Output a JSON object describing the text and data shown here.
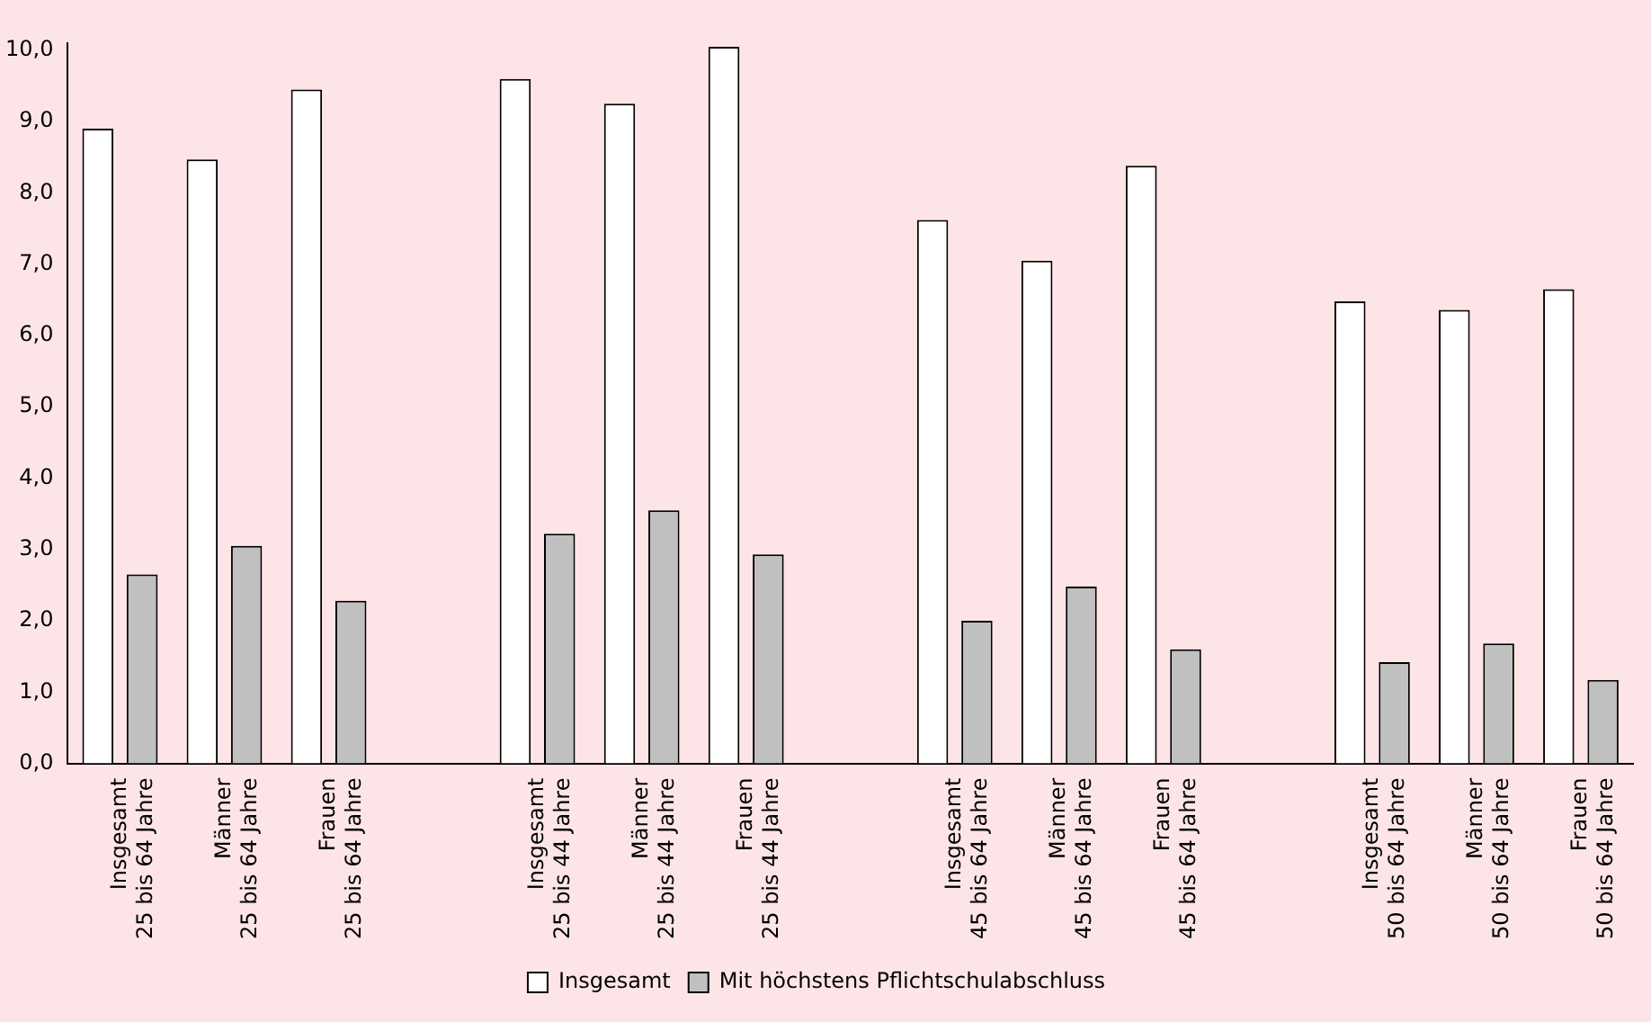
{
  "chart_data": {
    "type": "bar",
    "categories": [
      "Insgesamt\n25 bis 64 Jahre",
      "Männer\n25 bis 64 Jahre",
      "Frauen\n25 bis 64 Jahre",
      null,
      "Insgesamt\n25 bis 44 Jahre",
      "Männer\n25 bis 44 Jahre",
      "Frauen\n25 bis 44 Jahre",
      null,
      "Insgesamt\n45 bis 64 Jahre",
      "Männer\n45 bis 64 Jahre",
      "Frauen\n45 bis 64 Jahre",
      null,
      "Insgesamt\n50 bis 64 Jahre",
      "Männer\n50 bis 64 Jahre",
      "Frauen\n50 bis 64 Jahre"
    ],
    "series": [
      {
        "name": "Insgesamt",
        "color": "#ffffff",
        "values": [
          8.9,
          8.47,
          9.45,
          null,
          9.6,
          9.25,
          10.05,
          null,
          7.62,
          7.05,
          8.38,
          null,
          6.48,
          6.36,
          6.65
        ]
      },
      {
        "name": "Mit höchstens Pflichtschulabschluss",
        "color": "#c0c0c0",
        "values": [
          2.65,
          3.05,
          2.28,
          null,
          3.22,
          3.55,
          2.93,
          null,
          2.0,
          2.48,
          1.6,
          null,
          1.42,
          1.68,
          1.17
        ]
      }
    ],
    "ylim": [
      0,
      10.1
    ],
    "yticks": [
      {
        "value": 0,
        "label": "0,0"
      },
      {
        "value": 1,
        "label": "1,0"
      },
      {
        "value": 2,
        "label": "2,0"
      },
      {
        "value": 3,
        "label": "3,0"
      },
      {
        "value": 4,
        "label": "4,0"
      },
      {
        "value": 5,
        "label": "5,0"
      },
      {
        "value": 6,
        "label": "6,0"
      },
      {
        "value": 7,
        "label": "7,0"
      },
      {
        "value": 8,
        "label": "8,0"
      },
      {
        "value": 9,
        "label": "9,0"
      },
      {
        "value": 10,
        "label": "10,0"
      }
    ],
    "grid": false,
    "legend": "bottom"
  }
}
